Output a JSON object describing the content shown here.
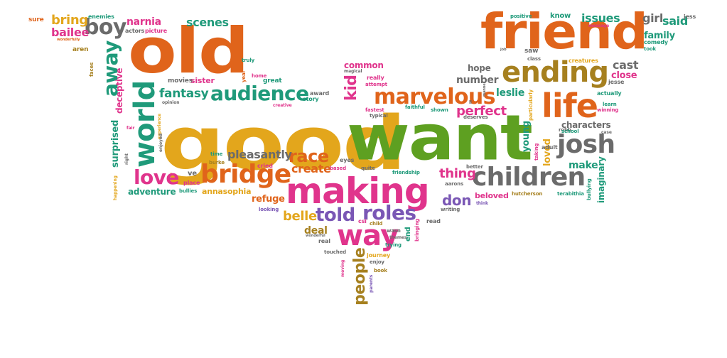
{
  "palette": {
    "orange": "#e0641b",
    "gold": "#e3a61c",
    "green": "#5ea021",
    "pink": "#e0348c",
    "teal": "#1f9a7a",
    "gray": "#6b6b6b",
    "purple": "#7a57b5",
    "brown": "#a6801f"
  },
  "words": [
    {
      "text": "good",
      "color": "#e3a61c"
    },
    {
      "text": "want",
      "color": "#5ea021"
    },
    {
      "text": "old",
      "color": "#e0641b"
    },
    {
      "text": "friend",
      "color": "#e0641b"
    },
    {
      "text": "making",
      "color": "#e0348c"
    },
    {
      "text": "ending",
      "color": "#a6801f"
    },
    {
      "text": "life",
      "color": "#e0641b"
    },
    {
      "text": "children",
      "color": "#6b6b6b"
    },
    {
      "text": "bridge",
      "color": "#e0641b"
    },
    {
      "text": "world",
      "color": "#1f9a7a"
    },
    {
      "text": "marvelous",
      "color": "#e0641b"
    },
    {
      "text": "audience",
      "color": "#1f9a7a"
    },
    {
      "text": "way",
      "color": "#e0348c"
    },
    {
      "text": "josh",
      "color": "#6b6b6b"
    },
    {
      "text": "love",
      "color": "#e0348c"
    },
    {
      "text": "boy",
      "color": "#6b6b6b"
    },
    {
      "text": "away",
      "color": "#1f9a7a"
    },
    {
      "text": "roles",
      "color": "#7a57b5"
    },
    {
      "text": "told",
      "color": "#7a57b5"
    },
    {
      "text": "race",
      "color": "#e0641b"
    },
    {
      "text": "people",
      "color": "#a6801f"
    },
    {
      "text": "pleasantly",
      "color": "#6b6b6b"
    },
    {
      "text": "perfect",
      "color": "#e0348c"
    },
    {
      "text": "kid",
      "color": "#e0348c"
    },
    {
      "text": "belle",
      "color": "#e3a61c"
    },
    {
      "text": "don",
      "color": "#7a57b5"
    },
    {
      "text": "create",
      "color": "#e0641b"
    },
    {
      "text": "thing",
      "color": "#e0348c"
    },
    {
      "text": "fantasy",
      "color": "#1f9a7a"
    },
    {
      "text": "scenes",
      "color": "#1f9a7a"
    },
    {
      "text": "narnia",
      "color": "#e0348c"
    },
    {
      "text": "bring",
      "color": "#e3a61c"
    },
    {
      "text": "bailee",
      "color": "#e0348c"
    },
    {
      "text": "issues",
      "color": "#1f9a7a"
    },
    {
      "text": "girl",
      "color": "#6b6b6b"
    },
    {
      "text": "said",
      "color": "#1f9a7a"
    },
    {
      "text": "family",
      "color": "#1f9a7a"
    },
    {
      "text": "characters",
      "color": "#6b6b6b"
    },
    {
      "text": "cast",
      "color": "#6b6b6b"
    },
    {
      "text": "close",
      "color": "#e0348c"
    },
    {
      "text": "hope",
      "color": "#6b6b6b"
    },
    {
      "text": "number",
      "color": "#6b6b6b"
    },
    {
      "text": "leslie",
      "color": "#1f9a7a"
    },
    {
      "text": "make",
      "color": "#1f9a7a"
    },
    {
      "text": "young",
      "color": "#1f9a7a"
    },
    {
      "text": "loved",
      "color": "#e3a61c"
    },
    {
      "text": "imaginary",
      "color": "#1f9a7a"
    },
    {
      "text": "refuge",
      "color": "#e0641b"
    },
    {
      "text": "deal",
      "color": "#a6801f"
    },
    {
      "text": "common",
      "color": "#e0348c"
    },
    {
      "text": "surprised",
      "color": "#1f9a7a"
    },
    {
      "text": "deceptive",
      "color": "#e0348c"
    },
    {
      "text": "adventure",
      "color": "#1f9a7a"
    },
    {
      "text": "annasophia",
      "color": "#e3a61c"
    },
    {
      "text": "beloved",
      "color": "#e0348c"
    },
    {
      "text": "sister",
      "color": "#e0348c"
    },
    {
      "text": "movies",
      "color": "#6b6b6b"
    },
    {
      "text": "actors",
      "color": "#6b6b6b"
    },
    {
      "text": "picture",
      "color": "#e0348c"
    },
    {
      "text": "sure",
      "color": "#e0641b"
    },
    {
      "text": "enemies",
      "color": "#1f9a7a"
    },
    {
      "text": "aren",
      "color": "#a6801f"
    },
    {
      "text": "know",
      "color": "#1f9a7a"
    },
    {
      "text": "positive",
      "color": "#1f9a7a"
    },
    {
      "text": "jess",
      "color": "#6b6b6b"
    },
    {
      "text": "message",
      "color": "#e0348c"
    },
    {
      "text": "comedy",
      "color": "#1f9a7a"
    },
    {
      "text": "took",
      "color": "#1f9a7a"
    },
    {
      "text": "saw",
      "color": "#6b6b6b"
    },
    {
      "text": "class",
      "color": "#6b6b6b"
    },
    {
      "text": "creatures",
      "color": "#e3a61c"
    },
    {
      "text": "jesse",
      "color": "#6b6b6b"
    },
    {
      "text": "actually",
      "color": "#1f9a7a"
    },
    {
      "text": "learn",
      "color": "#1f9a7a"
    },
    {
      "text": "winning",
      "color": "#e0348c"
    },
    {
      "text": "particularly",
      "color": "#e3a61c"
    },
    {
      "text": "robb",
      "color": "#6b6b6b"
    },
    {
      "text": "school",
      "color": "#1f9a7a"
    },
    {
      "text": "case",
      "color": "#6b6b6b"
    },
    {
      "text": "adult",
      "color": "#6b6b6b"
    },
    {
      "text": "taking",
      "color": "#e0348c"
    },
    {
      "text": "bullying",
      "color": "#1f9a7a"
    },
    {
      "text": "terabithia",
      "color": "#1f9a7a"
    },
    {
      "text": "hutcherson",
      "color": "#a6801f"
    },
    {
      "text": "aarons",
      "color": "#6b6b6b"
    },
    {
      "text": "better",
      "color": "#6b6b6b"
    },
    {
      "text": "writing",
      "color": "#6b6b6b"
    },
    {
      "text": "think",
      "color": "#7a57b5"
    },
    {
      "text": "read",
      "color": "#6b6b6b"
    },
    {
      "text": "friendship",
      "color": "#1f9a7a"
    },
    {
      "text": "quite",
      "color": "#6b6b6b"
    },
    {
      "text": "based",
      "color": "#e0348c"
    },
    {
      "text": "eyes",
      "color": "#6b6b6b"
    },
    {
      "text": "cried",
      "color": "#e0348c"
    },
    {
      "text": "burke",
      "color": "#a6801f"
    },
    {
      "text": "time",
      "color": "#1f9a7a"
    },
    {
      "text": "place",
      "color": "#e0348c"
    },
    {
      "text": "bullies",
      "color": "#1f9a7a"
    },
    {
      "text": "ve",
      "color": "#6b6b6b"
    },
    {
      "text": "looking",
      "color": "#7a57b5"
    },
    {
      "text": "fair",
      "color": "#e0348c"
    },
    {
      "text": "right",
      "color": "#6b6b6b"
    },
    {
      "text": "happening",
      "color": "#e3a61c"
    },
    {
      "text": "experience",
      "color": "#e3a61c"
    },
    {
      "text": "enjoyed",
      "color": "#6b6b6b"
    },
    {
      "text": "opinion",
      "color": "#6b6b6b"
    },
    {
      "text": "creative",
      "color": "#e0348c"
    },
    {
      "text": "award",
      "color": "#6b6b6b"
    },
    {
      "text": "story",
      "color": "#1f9a7a"
    },
    {
      "text": "great",
      "color": "#1f9a7a"
    },
    {
      "text": "home",
      "color": "#e0348c"
    },
    {
      "text": "year",
      "color": "#e0641b"
    },
    {
      "text": "truly",
      "color": "#1f9a7a"
    },
    {
      "text": "faces",
      "color": "#a6801f"
    },
    {
      "text": "wonderfully",
      "color": "#e0641b"
    },
    {
      "text": "magical",
      "color": "#6b6b6b"
    },
    {
      "text": "really",
      "color": "#e0348c"
    },
    {
      "text": "attempt",
      "color": "#e0348c"
    },
    {
      "text": "fastest",
      "color": "#e0348c"
    },
    {
      "text": "typical",
      "color": "#6b6b6b"
    },
    {
      "text": "faithful",
      "color": "#1f9a7a"
    },
    {
      "text": "shown",
      "color": "#1f9a7a"
    },
    {
      "text": "deserves",
      "color": "#6b6b6b"
    },
    {
      "text": "job",
      "color": "#6b6b6b"
    },
    {
      "text": "ll",
      "color": "#6b6b6b"
    },
    {
      "text": "manner",
      "color": "#6b6b6b"
    },
    {
      "text": "csi",
      "color": "#e0348c"
    },
    {
      "text": "child",
      "color": "#a6801f"
    },
    {
      "text": "wasn",
      "color": "#6b6b6b"
    },
    {
      "text": "end",
      "color": "#1f9a7a"
    },
    {
      "text": "bringing",
      "color": "#e0348c"
    },
    {
      "text": "themes",
      "color": "#6b6b6b"
    },
    {
      "text": "trying",
      "color": "#1f9a7a"
    },
    {
      "text": "real",
      "color": "#6b6b6b"
    },
    {
      "text": "wonderful",
      "color": "#6b6b6b"
    },
    {
      "text": "touched",
      "color": "#6b6b6b"
    },
    {
      "text": "journey",
      "color": "#e3a61c"
    },
    {
      "text": "enjoy",
      "color": "#6b6b6b"
    },
    {
      "text": "moving",
      "color": "#e0348c"
    },
    {
      "text": "book",
      "color": "#a6801f"
    },
    {
      "text": "parents",
      "color": "#7a57b5"
    }
  ]
}
